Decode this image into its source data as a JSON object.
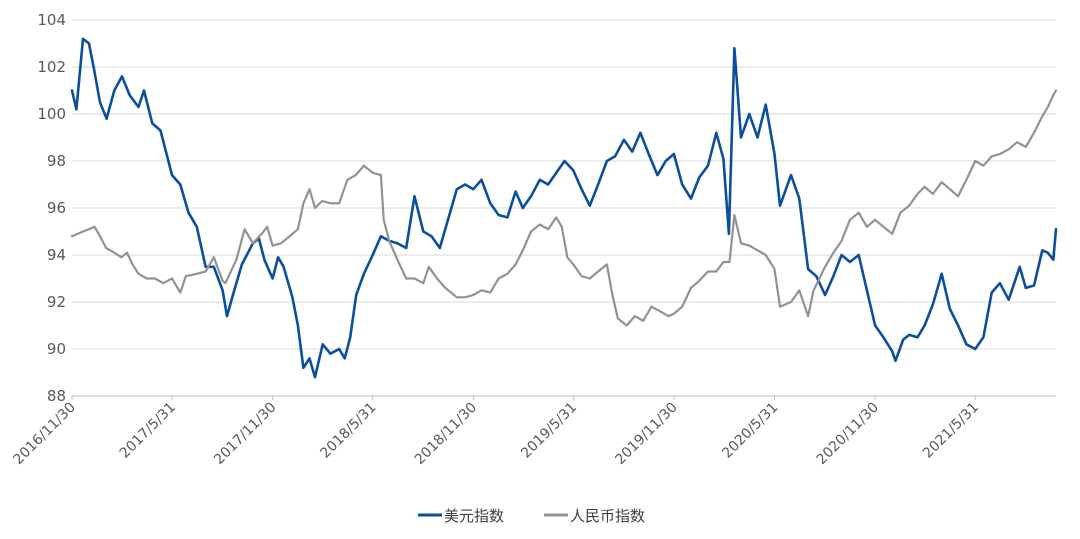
{
  "chart_data": {
    "type": "line",
    "title": "",
    "xlabel": "",
    "ylabel": "",
    "ylim": [
      88,
      104
    ],
    "yticks": [
      88,
      90,
      92,
      94,
      96,
      98,
      100,
      102,
      104
    ],
    "x_tick_labels": [
      "2016/11/30",
      "2017/5/31",
      "2017/11/30",
      "2018/5/31",
      "2018/11/30",
      "2019/5/31",
      "2019/11/30",
      "2020/5/31",
      "2020/11/30",
      "2021/5/31"
    ],
    "x_start": "2016-11-30",
    "x_end": "2021-10-25",
    "grid": "horizontal",
    "legend": "bottom-center",
    "series": [
      {
        "name": "美元指数",
        "color": "#0B4F9C",
        "points": [
          [
            "2016-11-30",
            101.0
          ],
          [
            "2016-12-08",
            100.2
          ],
          [
            "2016-12-20",
            103.2
          ],
          [
            "2016-12-31",
            103.0
          ],
          [
            "2017-01-10",
            101.8
          ],
          [
            "2017-01-20",
            100.5
          ],
          [
            "2017-02-01",
            99.8
          ],
          [
            "2017-02-15",
            101.0
          ],
          [
            "2017-03-01",
            101.6
          ],
          [
            "2017-03-15",
            100.8
          ],
          [
            "2017-03-31",
            100.3
          ],
          [
            "2017-04-10",
            101.0
          ],
          [
            "2017-04-25",
            99.6
          ],
          [
            "2017-05-10",
            99.3
          ],
          [
            "2017-05-31",
            97.4
          ],
          [
            "2017-06-15",
            97.0
          ],
          [
            "2017-06-30",
            95.8
          ],
          [
            "2017-07-15",
            95.2
          ],
          [
            "2017-07-31",
            93.5
          ],
          [
            "2017-08-15",
            93.5
          ],
          [
            "2017-08-31",
            92.5
          ],
          [
            "2017-09-08",
            91.4
          ],
          [
            "2017-09-20",
            92.4
          ],
          [
            "2017-10-05",
            93.6
          ],
          [
            "2017-10-25",
            94.5
          ],
          [
            "2017-11-05",
            94.7
          ],
          [
            "2017-11-15",
            93.8
          ],
          [
            "2017-11-30",
            93.0
          ],
          [
            "2017-12-10",
            93.9
          ],
          [
            "2017-12-20",
            93.5
          ],
          [
            "2018-01-05",
            92.2
          ],
          [
            "2018-01-15",
            91.0
          ],
          [
            "2018-01-25",
            89.2
          ],
          [
            "2018-02-05",
            89.6
          ],
          [
            "2018-02-15",
            88.8
          ],
          [
            "2018-03-01",
            90.2
          ],
          [
            "2018-03-15",
            89.8
          ],
          [
            "2018-03-31",
            90.0
          ],
          [
            "2018-04-10",
            89.6
          ],
          [
            "2018-04-20",
            90.5
          ],
          [
            "2018-05-01",
            92.3
          ],
          [
            "2018-05-15",
            93.2
          ],
          [
            "2018-05-31",
            94.0
          ],
          [
            "2018-06-15",
            94.8
          ],
          [
            "2018-06-30",
            94.6
          ],
          [
            "2018-07-15",
            94.5
          ],
          [
            "2018-07-31",
            94.3
          ],
          [
            "2018-08-15",
            96.5
          ],
          [
            "2018-08-31",
            95.0
          ],
          [
            "2018-09-15",
            94.8
          ],
          [
            "2018-09-30",
            94.3
          ],
          [
            "2018-10-15",
            95.5
          ],
          [
            "2018-10-31",
            96.8
          ],
          [
            "2018-11-15",
            97.0
          ],
          [
            "2018-11-30",
            96.8
          ],
          [
            "2018-12-15",
            97.2
          ],
          [
            "2018-12-31",
            96.2
          ],
          [
            "2019-01-15",
            95.7
          ],
          [
            "2019-01-31",
            95.6
          ],
          [
            "2019-02-15",
            96.7
          ],
          [
            "2019-02-28",
            96.0
          ],
          [
            "2019-03-15",
            96.5
          ],
          [
            "2019-03-31",
            97.2
          ],
          [
            "2019-04-15",
            97.0
          ],
          [
            "2019-04-30",
            97.5
          ],
          [
            "2019-05-15",
            98.0
          ],
          [
            "2019-05-31",
            97.6
          ],
          [
            "2019-06-15",
            96.8
          ],
          [
            "2019-06-30",
            96.1
          ],
          [
            "2019-07-15",
            97.0
          ],
          [
            "2019-07-31",
            98.0
          ],
          [
            "2019-08-15",
            98.2
          ],
          [
            "2019-08-31",
            98.9
          ],
          [
            "2019-09-15",
            98.4
          ],
          [
            "2019-09-30",
            99.2
          ],
          [
            "2019-10-15",
            98.3
          ],
          [
            "2019-10-31",
            97.4
          ],
          [
            "2019-11-15",
            98.0
          ],
          [
            "2019-11-30",
            98.3
          ],
          [
            "2019-12-15",
            97.0
          ],
          [
            "2019-12-31",
            96.4
          ],
          [
            "2020-01-15",
            97.3
          ],
          [
            "2020-01-31",
            97.8
          ],
          [
            "2020-02-15",
            99.2
          ],
          [
            "2020-02-28",
            98.1
          ],
          [
            "2020-03-09",
            94.9
          ],
          [
            "2020-03-19",
            102.8
          ],
          [
            "2020-03-31",
            99.0
          ],
          [
            "2020-04-15",
            100.0
          ],
          [
            "2020-04-30",
            99.0
          ],
          [
            "2020-05-15",
            100.4
          ],
          [
            "2020-05-31",
            98.3
          ],
          [
            "2020-06-10",
            96.1
          ],
          [
            "2020-06-30",
            97.4
          ],
          [
            "2020-07-15",
            96.4
          ],
          [
            "2020-07-31",
            93.4
          ],
          [
            "2020-08-15",
            93.1
          ],
          [
            "2020-08-31",
            92.3
          ],
          [
            "2020-09-15",
            93.1
          ],
          [
            "2020-09-30",
            94.0
          ],
          [
            "2020-10-15",
            93.7
          ],
          [
            "2020-10-31",
            94.0
          ],
          [
            "2020-11-15",
            92.5
          ],
          [
            "2020-11-30",
            91.0
          ],
          [
            "2020-12-15",
            90.5
          ],
          [
            "2020-12-31",
            89.9
          ],
          [
            "2021-01-06",
            89.5
          ],
          [
            "2021-01-20",
            90.4
          ],
          [
            "2021-01-31",
            90.6
          ],
          [
            "2021-02-15",
            90.5
          ],
          [
            "2021-02-28",
            91.0
          ],
          [
            "2021-03-15",
            91.9
          ],
          [
            "2021-03-31",
            93.2
          ],
          [
            "2021-04-15",
            91.7
          ],
          [
            "2021-04-30",
            91.0
          ],
          [
            "2021-05-15",
            90.2
          ],
          [
            "2021-05-31",
            90.0
          ],
          [
            "2021-06-15",
            90.5
          ],
          [
            "2021-06-30",
            92.4
          ],
          [
            "2021-07-15",
            92.8
          ],
          [
            "2021-07-31",
            92.1
          ],
          [
            "2021-08-20",
            93.5
          ],
          [
            "2021-08-31",
            92.6
          ],
          [
            "2021-09-15",
            92.7
          ],
          [
            "2021-09-30",
            94.2
          ],
          [
            "2021-10-10",
            94.1
          ],
          [
            "2021-10-20",
            93.8
          ],
          [
            "2021-10-25",
            95.1
          ]
        ]
      },
      {
        "name": "人民币指数",
        "color": "#929292",
        "points": [
          [
            "2016-11-30",
            94.8
          ],
          [
            "2016-12-20",
            95.0
          ],
          [
            "2016-12-31",
            95.1
          ],
          [
            "2017-01-10",
            95.2
          ],
          [
            "2017-01-20",
            94.8
          ],
          [
            "2017-01-31",
            94.3
          ],
          [
            "2017-02-15",
            94.1
          ],
          [
            "2017-02-28",
            93.9
          ],
          [
            "2017-03-10",
            94.1
          ],
          [
            "2017-03-20",
            93.6
          ],
          [
            "2017-03-31",
            93.2
          ],
          [
            "2017-04-15",
            93.0
          ],
          [
            "2017-04-30",
            93.0
          ],
          [
            "2017-05-15",
            92.8
          ],
          [
            "2017-05-31",
            93.0
          ],
          [
            "2017-06-15",
            92.4
          ],
          [
            "2017-06-25",
            93.1
          ],
          [
            "2017-07-15",
            93.2
          ],
          [
            "2017-07-31",
            93.3
          ],
          [
            "2017-08-15",
            93.9
          ],
          [
            "2017-08-31",
            92.9
          ],
          [
            "2017-09-05",
            92.8
          ],
          [
            "2017-09-25",
            93.8
          ],
          [
            "2017-10-10",
            95.1
          ],
          [
            "2017-10-25",
            94.5
          ],
          [
            "2017-11-10",
            94.9
          ],
          [
            "2017-11-20",
            95.2
          ],
          [
            "2017-11-30",
            94.4
          ],
          [
            "2017-12-15",
            94.5
          ],
          [
            "2017-12-31",
            94.8
          ],
          [
            "2018-01-15",
            95.1
          ],
          [
            "2018-01-25",
            96.2
          ],
          [
            "2018-02-05",
            96.8
          ],
          [
            "2018-02-15",
            96.0
          ],
          [
            "2018-02-28",
            96.3
          ],
          [
            "2018-03-15",
            96.2
          ],
          [
            "2018-03-31",
            96.2
          ],
          [
            "2018-04-15",
            97.2
          ],
          [
            "2018-04-30",
            97.4
          ],
          [
            "2018-05-15",
            97.8
          ],
          [
            "2018-05-31",
            97.5
          ],
          [
            "2018-06-15",
            97.4
          ],
          [
            "2018-06-20",
            95.5
          ],
          [
            "2018-06-30",
            94.6
          ],
          [
            "2018-07-15",
            93.8
          ],
          [
            "2018-07-31",
            93.0
          ],
          [
            "2018-08-15",
            93.0
          ],
          [
            "2018-08-31",
            92.8
          ],
          [
            "2018-09-10",
            93.5
          ],
          [
            "2018-09-25",
            93.0
          ],
          [
            "2018-10-10",
            92.6
          ],
          [
            "2018-10-31",
            92.2
          ],
          [
            "2018-11-15",
            92.2
          ],
          [
            "2018-11-30",
            92.3
          ],
          [
            "2018-12-15",
            92.5
          ],
          [
            "2018-12-31",
            92.4
          ],
          [
            "2019-01-15",
            93.0
          ],
          [
            "2019-01-31",
            93.2
          ],
          [
            "2019-02-15",
            93.6
          ],
          [
            "2019-02-28",
            94.2
          ],
          [
            "2019-03-15",
            95.0
          ],
          [
            "2019-03-31",
            95.3
          ],
          [
            "2019-04-15",
            95.1
          ],
          [
            "2019-04-30",
            95.6
          ],
          [
            "2019-05-10",
            95.2
          ],
          [
            "2019-05-20",
            93.9
          ],
          [
            "2019-05-31",
            93.6
          ],
          [
            "2019-06-15",
            93.1
          ],
          [
            "2019-06-30",
            93.0
          ],
          [
            "2019-07-15",
            93.3
          ],
          [
            "2019-07-31",
            93.6
          ],
          [
            "2019-08-10",
            92.3
          ],
          [
            "2019-08-20",
            91.3
          ],
          [
            "2019-09-05",
            91.0
          ],
          [
            "2019-09-20",
            91.4
          ],
          [
            "2019-10-05",
            91.2
          ],
          [
            "2019-10-20",
            91.8
          ],
          [
            "2019-11-05",
            91.6
          ],
          [
            "2019-11-20",
            91.4
          ],
          [
            "2019-11-30",
            91.5
          ],
          [
            "2019-12-15",
            91.8
          ],
          [
            "2019-12-31",
            92.6
          ],
          [
            "2020-01-15",
            92.9
          ],
          [
            "2020-01-31",
            93.3
          ],
          [
            "2020-02-15",
            93.3
          ],
          [
            "2020-02-28",
            93.7
          ],
          [
            "2020-03-10",
            93.7
          ],
          [
            "2020-03-19",
            95.7
          ],
          [
            "2020-03-31",
            94.5
          ],
          [
            "2020-04-15",
            94.4
          ],
          [
            "2020-04-30",
            94.2
          ],
          [
            "2020-05-15",
            94.0
          ],
          [
            "2020-05-31",
            93.4
          ],
          [
            "2020-06-10",
            91.8
          ],
          [
            "2020-06-30",
            92.0
          ],
          [
            "2020-07-15",
            92.5
          ],
          [
            "2020-07-31",
            91.4
          ],
          [
            "2020-08-10",
            92.5
          ],
          [
            "2020-08-31",
            93.5
          ],
          [
            "2020-09-15",
            94.1
          ],
          [
            "2020-09-30",
            94.6
          ],
          [
            "2020-10-15",
            95.5
          ],
          [
            "2020-10-31",
            95.8
          ],
          [
            "2020-11-15",
            95.2
          ],
          [
            "2020-11-30",
            95.5
          ],
          [
            "2020-12-15",
            95.2
          ],
          [
            "2020-12-31",
            94.9
          ],
          [
            "2021-01-15",
            95.8
          ],
          [
            "2021-01-31",
            96.1
          ],
          [
            "2021-02-15",
            96.6
          ],
          [
            "2021-02-28",
            96.9
          ],
          [
            "2021-03-15",
            96.6
          ],
          [
            "2021-03-31",
            97.1
          ],
          [
            "2021-04-15",
            96.8
          ],
          [
            "2021-04-30",
            96.5
          ],
          [
            "2021-05-15",
            97.2
          ],
          [
            "2021-05-31",
            98.0
          ],
          [
            "2021-06-15",
            97.8
          ],
          [
            "2021-06-30",
            98.2
          ],
          [
            "2021-07-15",
            98.3
          ],
          [
            "2021-07-31",
            98.5
          ],
          [
            "2021-08-15",
            98.8
          ],
          [
            "2021-08-31",
            98.6
          ],
          [
            "2021-09-15",
            99.2
          ],
          [
            "2021-09-30",
            99.9
          ],
          [
            "2021-10-10",
            100.3
          ],
          [
            "2021-10-20",
            100.8
          ],
          [
            "2021-10-25",
            101.0
          ]
        ]
      }
    ]
  }
}
